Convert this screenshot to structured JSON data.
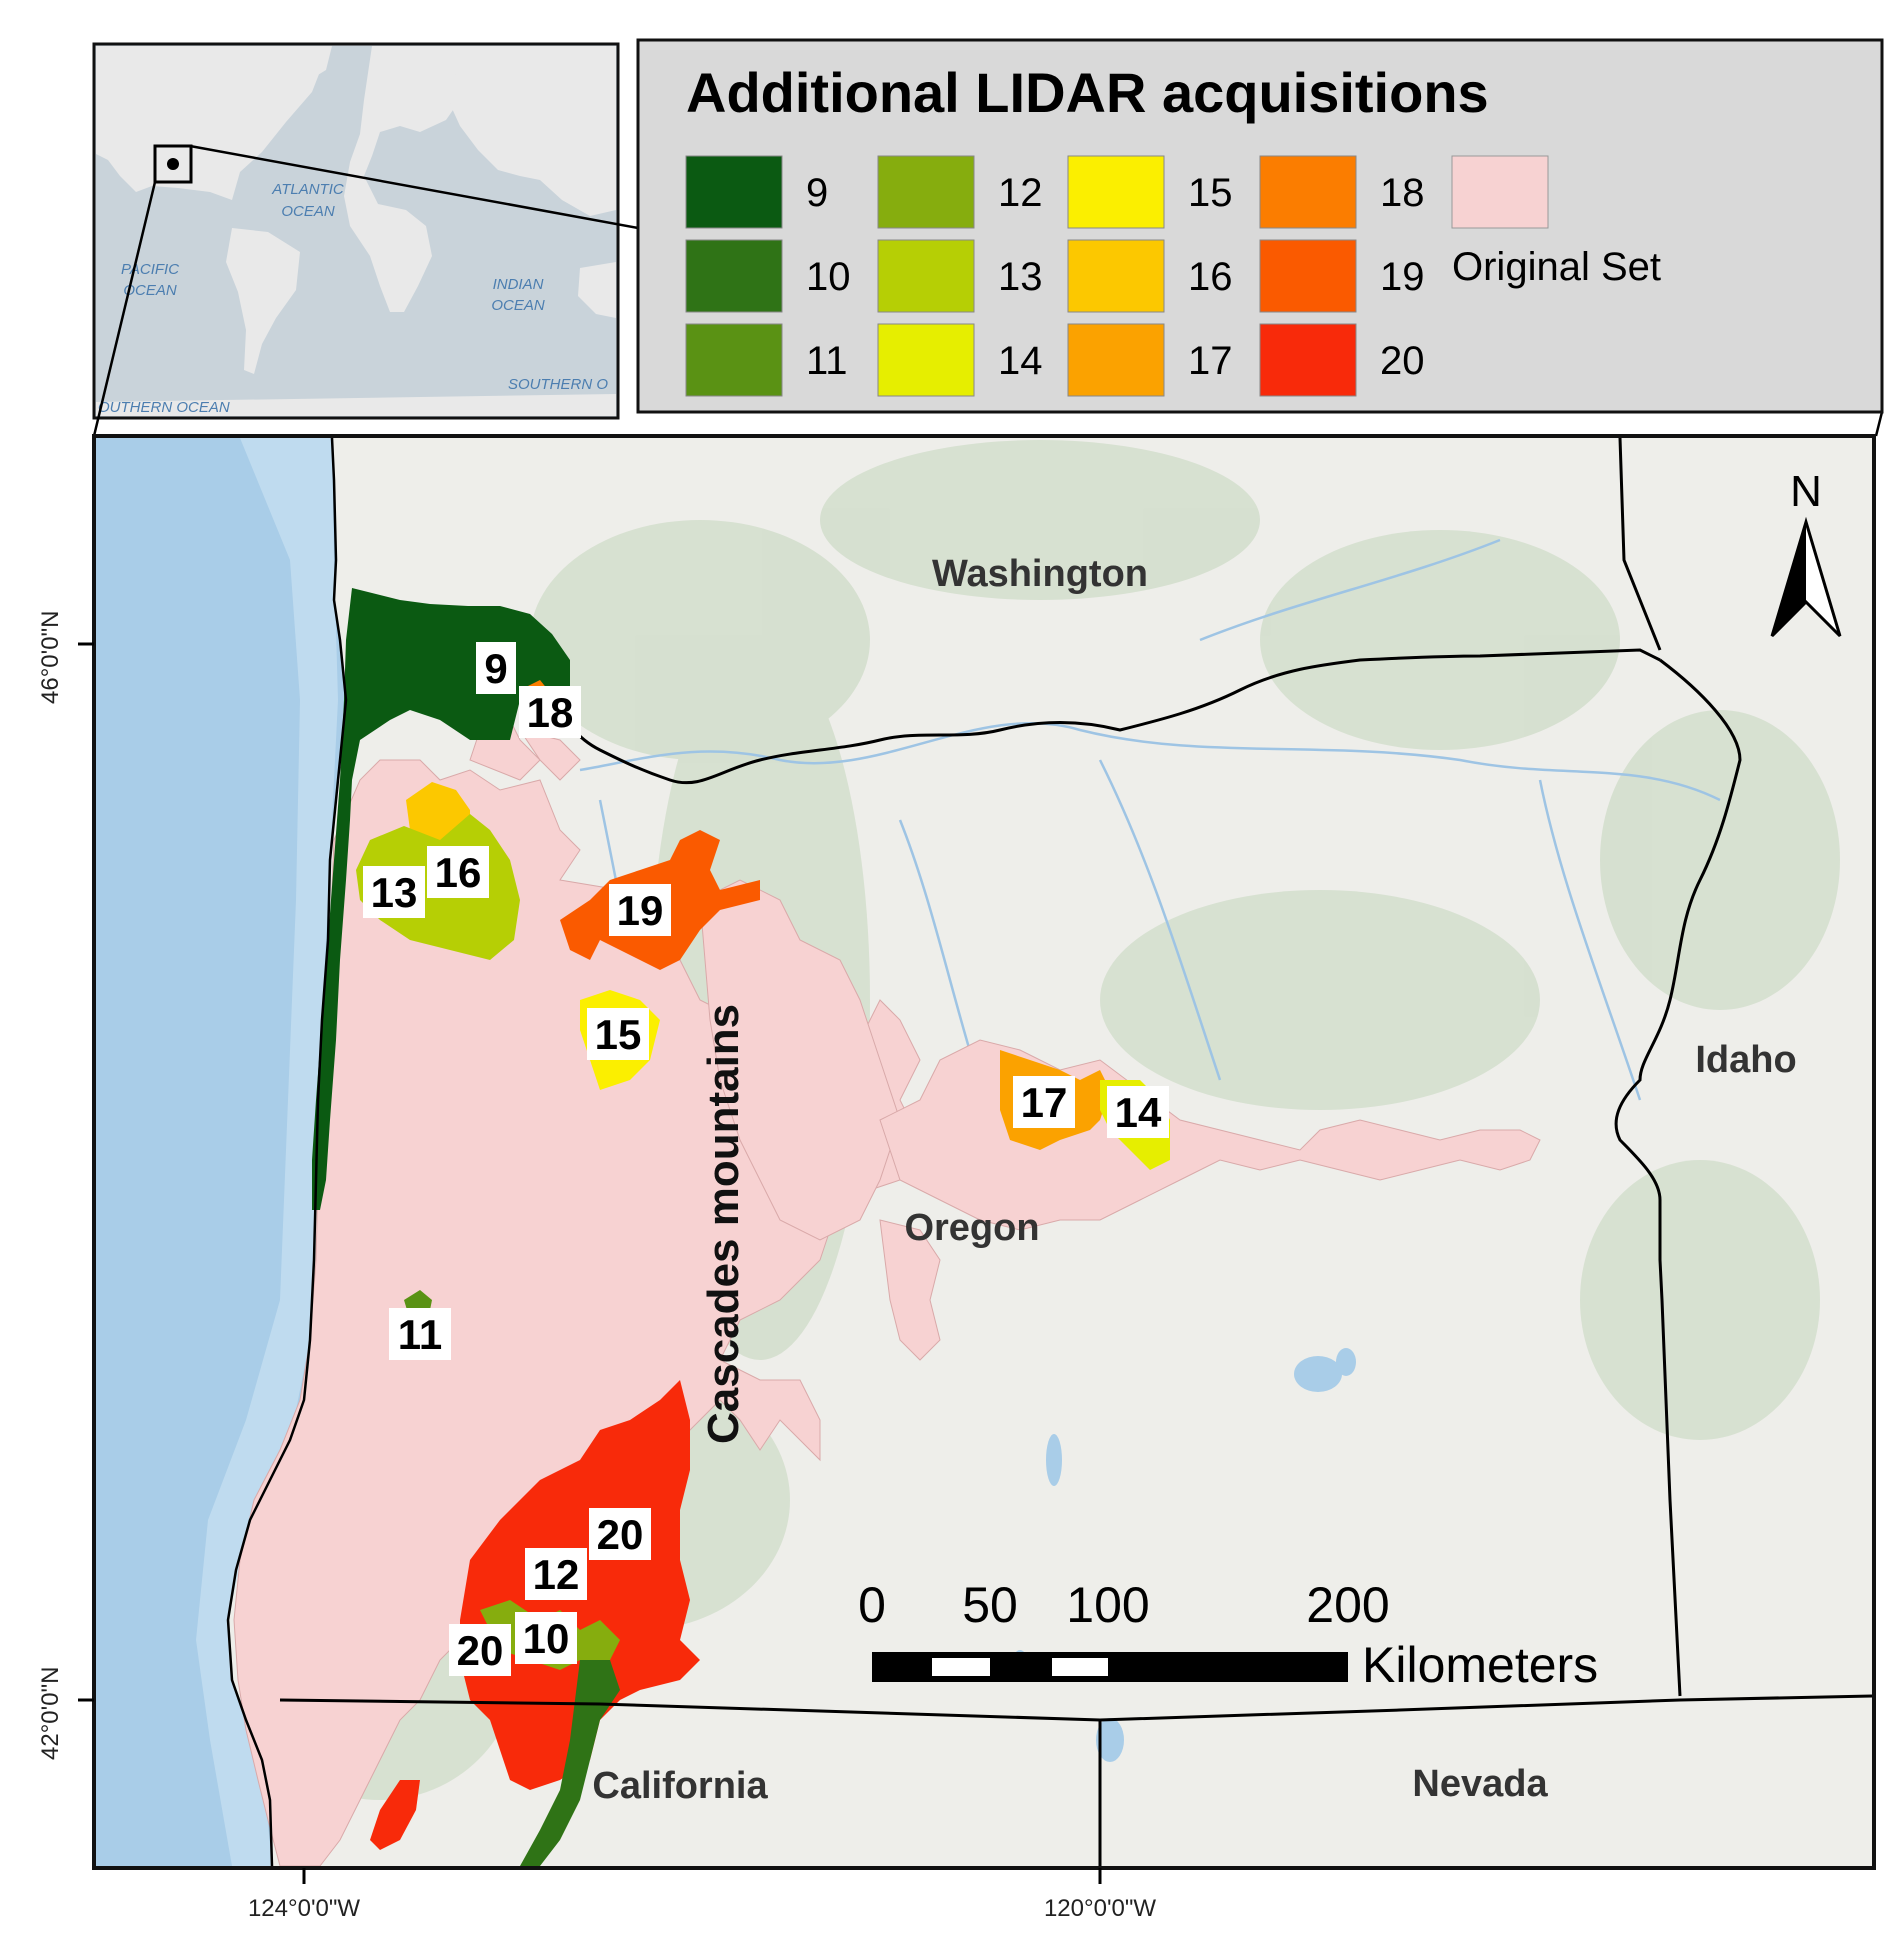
{
  "inset": {
    "ocean_labels": [
      {
        "id": "atlantic",
        "line1": "ATLANTIC",
        "line2": "OCEAN"
      },
      {
        "id": "pacific",
        "line1": "PACIFIC",
        "line2": "OCEAN"
      },
      {
        "id": "indian",
        "line1": "INDIAN",
        "line2": "OCEAN"
      },
      {
        "id": "southern-right",
        "line1": "SOUTHERN O",
        "line2": ""
      },
      {
        "id": "southern-left",
        "line1": "OUTHERN OCEAN",
        "line2": ""
      }
    ]
  },
  "legend": {
    "title": "Additional LIDAR acquisitions",
    "items": [
      {
        "label": "9",
        "color": "#0b5a12"
      },
      {
        "label": "10",
        "color": "#2f7316"
      },
      {
        "label": "11",
        "color": "#5a9214"
      },
      {
        "label": "12",
        "color": "#86ad0e"
      },
      {
        "label": "13",
        "color": "#b6cf05"
      },
      {
        "label": "14",
        "color": "#e6ee00"
      },
      {
        "label": "15",
        "color": "#fbef00"
      },
      {
        "label": "16",
        "color": "#fcc800"
      },
      {
        "label": "17",
        "color": "#fba200"
      },
      {
        "label": "18",
        "color": "#fb7d00"
      },
      {
        "label": "19",
        "color": "#fa5a00"
      },
      {
        "label": "20",
        "color": "#f82a0a"
      }
    ],
    "original_set": {
      "label": "Original Set",
      "color": "#f7d2d2"
    }
  },
  "map": {
    "state_labels": {
      "washington": "Washington",
      "oregon": "Oregon",
      "idaho": "Idaho",
      "california": "California",
      "nevada": "Nevada"
    },
    "feature_label": "Cascades mountains",
    "north_label": "N",
    "area_labels": [
      "9",
      "18",
      "13",
      "16",
      "19",
      "15",
      "17",
      "14",
      "11",
      "20",
      "12",
      "20",
      "10"
    ],
    "scale_bar": {
      "ticks": [
        "0",
        "50",
        "100",
        "200"
      ],
      "unit": "Kilometers"
    },
    "graticule": {
      "lat_46": "46°0'0\"N",
      "lat_42": "42°0'0\"N",
      "lon_124": "124°0'0\"W",
      "lon_120": "120°0'0\"W"
    }
  }
}
